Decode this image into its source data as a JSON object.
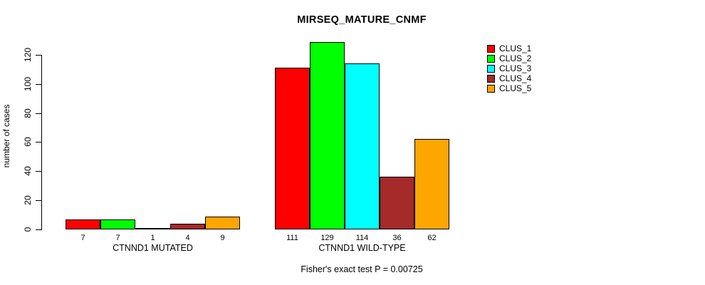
{
  "chart_data": {
    "type": "bar",
    "title": "MIRSEQ_MATURE_CNMF",
    "ylabel": "number of cases",
    "xlabel": "",
    "subtitle": "Fisher's exact test P = 0.00725",
    "categories": [
      "CTNND1 MUTATED",
      "CTNND1 WILD-TYPE"
    ],
    "series": [
      {
        "name": "CLUS_1",
        "color": "#FF0000",
        "values": [
          7,
          111
        ]
      },
      {
        "name": "CLUS_2",
        "color": "#00FF00",
        "values": [
          7,
          129
        ]
      },
      {
        "name": "CLUS_3",
        "color": "#00FFFF",
        "values": [
          1,
          114
        ]
      },
      {
        "name": "CLUS_4",
        "color": "#A52A2A",
        "values": [
          4,
          36
        ]
      },
      {
        "name": "CLUS_5",
        "color": "#FFA500",
        "values": [
          9,
          62
        ]
      }
    ],
    "bar_value_labels": {
      "CTNND1 MUTATED": [
        7,
        7,
        1,
        4,
        9
      ],
      "CTNND1 WILD-TYPE": [
        111,
        129,
        114,
        36,
        62
      ]
    },
    "yticks": [
      0,
      20,
      40,
      60,
      80,
      100,
      120
    ],
    "ylim": [
      0,
      130
    ],
    "grid": false,
    "legend_position": "right",
    "legend_labels": [
      "CLUS_1",
      "CLUS_2",
      "CLUS_3",
      "CLUS_4",
      "CLUS_5"
    ]
  }
}
